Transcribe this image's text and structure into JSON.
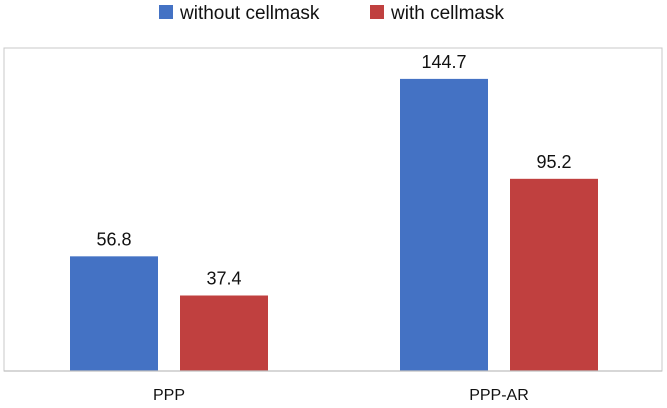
{
  "chart_data": {
    "type": "bar",
    "categories": [
      "PPP",
      "PPP-AR"
    ],
    "series": [
      {
        "name": "without cellmask",
        "values": [
          56.8,
          144.7
        ],
        "color": "#4472C4"
      },
      {
        "name": "with cellmask",
        "values": [
          37.4,
          95.2
        ],
        "color": "#C0403F"
      }
    ],
    "data_labels": [
      [
        "56.8",
        "144.7"
      ],
      [
        "37.4",
        "95.2"
      ]
    ],
    "title": "",
    "xlabel": "",
    "ylabel": "",
    "ylim": [
      0,
      160
    ],
    "grid": false,
    "y_axis_labels": false,
    "legend_position": "top"
  }
}
